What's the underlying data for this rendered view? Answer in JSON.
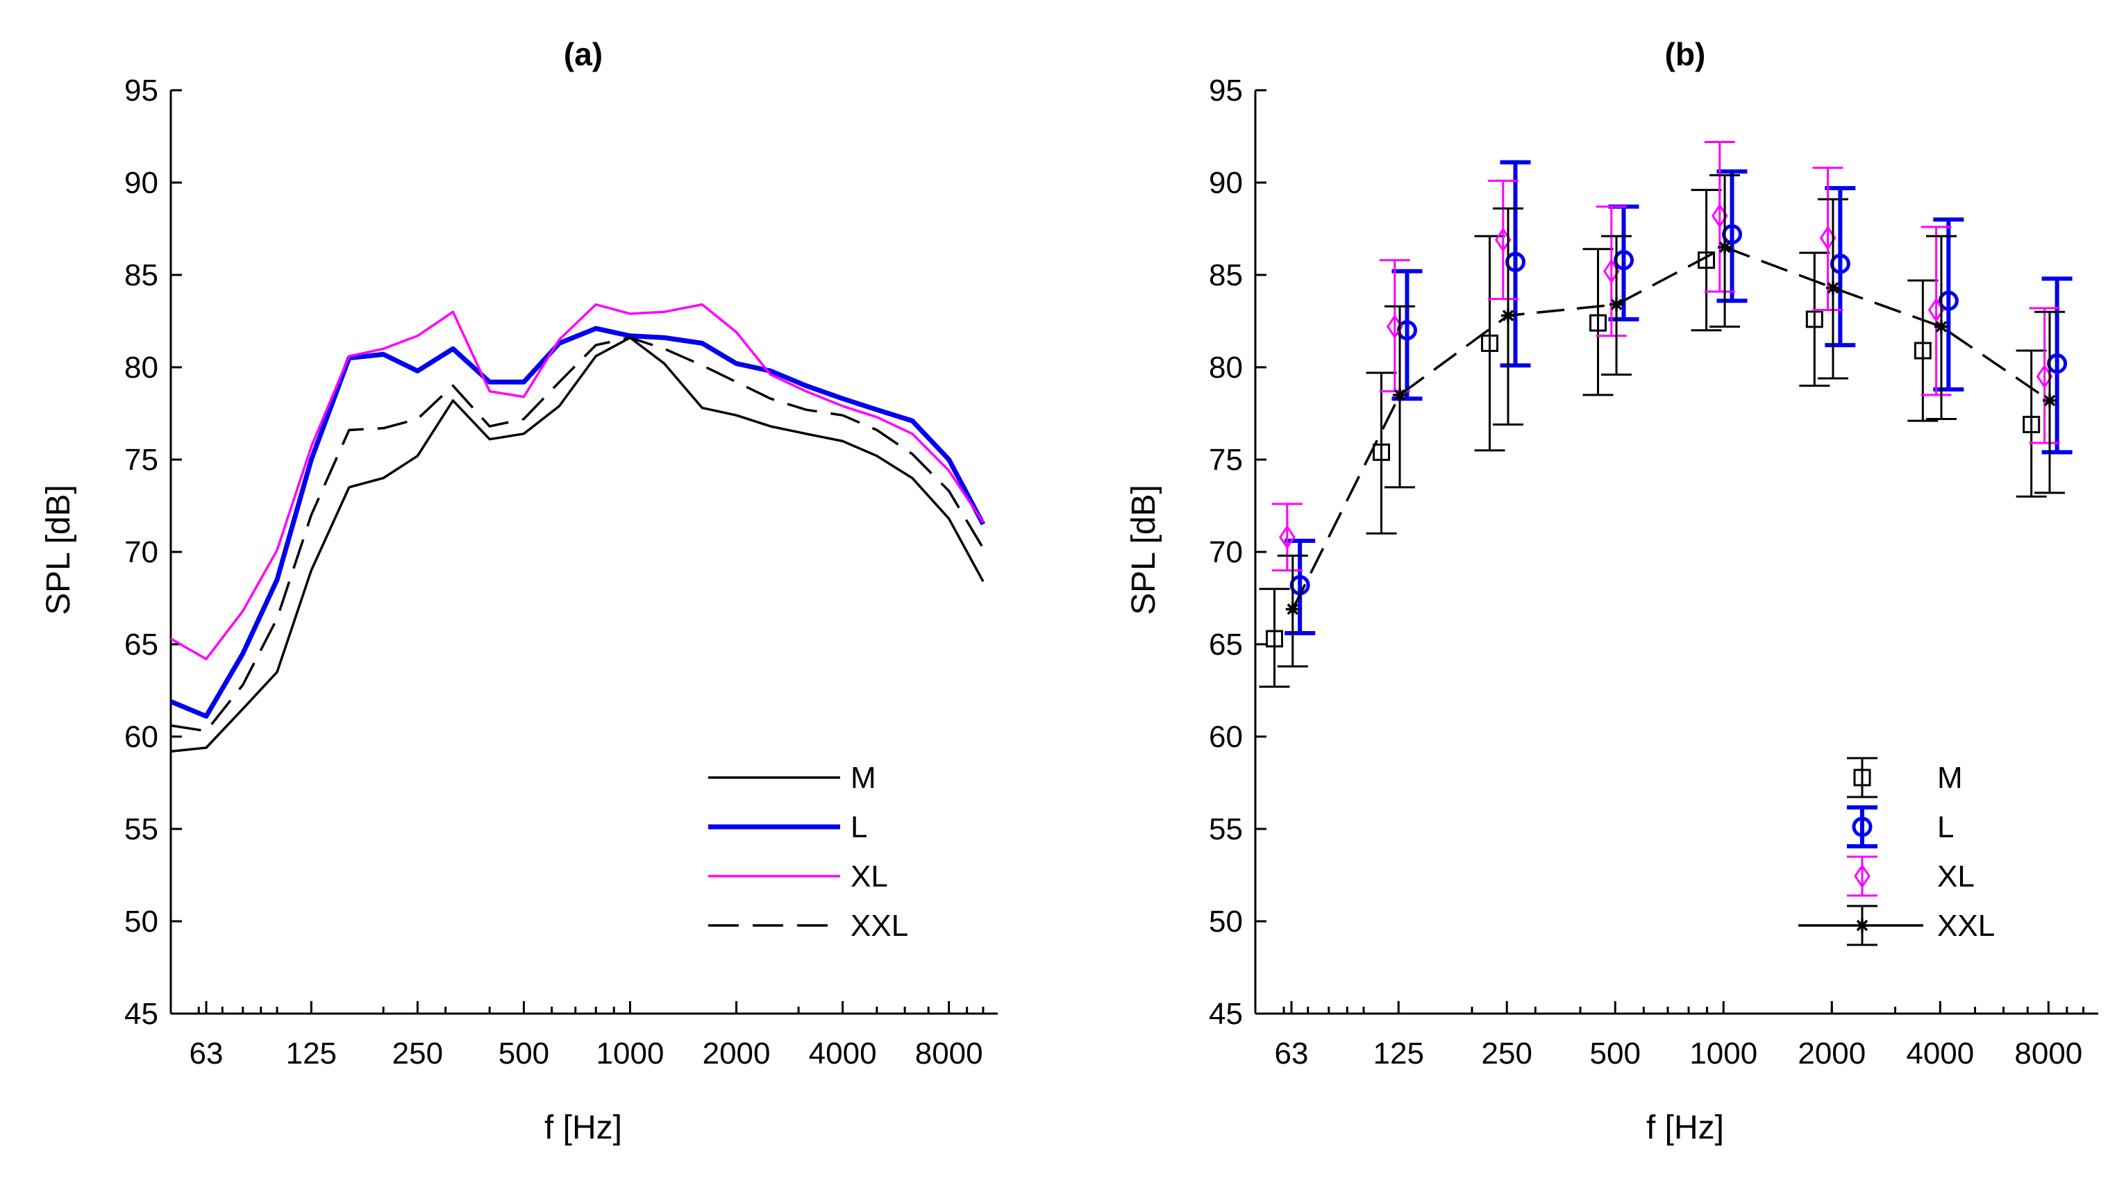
{
  "chart_data": [
    {
      "type": "line",
      "title": "(a)",
      "xlabel": "f [Hz]",
      "ylabel": "SPL [dB]",
      "xscale": "log",
      "xlim": [
        50,
        11000
      ],
      "ylim": [
        45,
        95
      ],
      "yticks": [
        45,
        50,
        55,
        60,
        65,
        70,
        75,
        80,
        85,
        90,
        95
      ],
      "xtick_values": [
        63,
        125,
        250,
        500,
        1000,
        2000,
        4000,
        8000
      ],
      "xtick_labels": [
        "63",
        "125",
        "250",
        "500",
        "1000",
        "2000",
        "4000",
        "8000"
      ],
      "legend_position": "bottom-right",
      "x": [
        50,
        63,
        80,
        100,
        125,
        160,
        200,
        250,
        315,
        400,
        500,
        630,
        800,
        1000,
        1250,
        1600,
        2000,
        2500,
        3150,
        4000,
        5000,
        6300,
        8000,
        10000
      ],
      "series": [
        {
          "name": "M",
          "color": "#000000",
          "style": "solid",
          "values": [
            59.2,
            59.4,
            61.5,
            63.5,
            69.0,
            73.5,
            74.0,
            75.2,
            78.2,
            76.1,
            76.4,
            77.9,
            80.6,
            81.6,
            80.2,
            77.8,
            77.4,
            76.8,
            76.4,
            76.0,
            75.2,
            74.0,
            71.8,
            68.4
          ]
        },
        {
          "name": "L",
          "color": "#0000ee",
          "style": "solid-thick",
          "values": [
            61.9,
            61.1,
            64.5,
            68.5,
            75.0,
            80.5,
            80.7,
            79.8,
            81.0,
            79.2,
            79.2,
            81.3,
            82.1,
            81.7,
            81.6,
            81.3,
            80.2,
            79.8,
            79.0,
            78.3,
            77.7,
            77.1,
            75.0,
            71.5
          ]
        },
        {
          "name": "XL",
          "color": "#ff00ff",
          "style": "solid",
          "values": [
            65.3,
            64.2,
            66.8,
            70.1,
            75.7,
            80.6,
            81.0,
            81.7,
            83.0,
            78.7,
            78.4,
            81.5,
            83.4,
            82.9,
            83.0,
            83.4,
            81.9,
            79.6,
            78.7,
            77.9,
            77.3,
            76.4,
            74.4,
            71.6
          ]
        },
        {
          "name": "XXL",
          "color": "#000000",
          "style": "dashed",
          "values": [
            60.6,
            60.3,
            62.8,
            66.4,
            72.0,
            76.6,
            76.7,
            77.2,
            79.0,
            76.8,
            77.2,
            79.2,
            81.2,
            81.6,
            81.0,
            80.1,
            79.2,
            78.3,
            77.7,
            77.4,
            76.6,
            75.3,
            73.3,
            70.2
          ]
        }
      ]
    },
    {
      "type": "scatter",
      "title": "(b)",
      "xlabel": "f [Hz]",
      "ylabel": "SPL [dB]",
      "xscale": "log",
      "xlim": [
        50,
        11000
      ],
      "ylim": [
        45,
        95
      ],
      "yticks": [
        45,
        50,
        55,
        60,
        65,
        70,
        75,
        80,
        85,
        90,
        95
      ],
      "xtick_values": [
        63,
        125,
        250,
        500,
        1000,
        2000,
        4000,
        8000
      ],
      "xtick_labels": [
        "63",
        "125",
        "250",
        "500",
        "1000",
        "2000",
        "4000",
        "8000"
      ],
      "legend_position": "bottom-right",
      "categories": [
        "63",
        "125",
        "250",
        "500",
        "1000",
        "2000",
        "4000",
        "8000"
      ],
      "series": [
        {
          "name": "M",
          "color": "#000000",
          "marker": "square",
          "errorbars": true,
          "line": false,
          "x": [
            56.5,
            112,
            224,
            448,
            896,
            1790,
            3580,
            7170
          ],
          "values": [
            65.3,
            75.4,
            81.3,
            82.4,
            85.8,
            82.6,
            80.9,
            76.9
          ],
          "lower": [
            62.7,
            71.0,
            75.5,
            78.5,
            82.0,
            79.0,
            77.1,
            73.0
          ],
          "upper": [
            68.0,
            79.7,
            87.1,
            86.4,
            89.6,
            86.2,
            84.7,
            80.9
          ]
        },
        {
          "name": "L",
          "color": "#0000ee",
          "marker": "circle",
          "errorbars": true,
          "line": false,
          "x": [
            66.5,
            132,
            264,
            528,
            1056,
            2110,
            4220,
            8450
          ],
          "values": [
            68.2,
            82.0,
            85.7,
            85.8,
            87.2,
            85.6,
            83.6,
            80.2
          ],
          "lower": [
            65.6,
            78.3,
            80.1,
            82.6,
            83.6,
            81.2,
            78.8,
            75.4
          ],
          "upper": [
            70.6,
            85.2,
            91.1,
            88.7,
            90.6,
            89.7,
            88.0,
            84.8
          ]
        },
        {
          "name": "XL",
          "color": "#ff00ff",
          "marker": "diamond",
          "errorbars": true,
          "line": false,
          "x": [
            61.3,
            122,
            244,
            488,
            976,
            1950,
            3900,
            7800
          ],
          "values": [
            70.8,
            82.2,
            86.9,
            85.2,
            88.2,
            87.0,
            83.1,
            79.5
          ],
          "lower": [
            69.0,
            78.7,
            83.7,
            81.7,
            84.1,
            83.1,
            78.5,
            75.9
          ],
          "upper": [
            72.6,
            85.8,
            90.1,
            88.7,
            92.2,
            90.8,
            87.6,
            83.2
          ]
        },
        {
          "name": "XXL",
          "color": "#000000",
          "marker": "star",
          "errorbars": true,
          "line": true,
          "line_style": "dashed",
          "x": [
            63.5,
            126,
            252,
            504,
            1008,
            2015,
            4030,
            8060
          ],
          "values": [
            66.9,
            78.5,
            82.8,
            83.4,
            86.5,
            84.3,
            82.2,
            78.2
          ],
          "lower": [
            63.8,
            73.5,
            76.9,
            79.6,
            82.2,
            79.4,
            77.2,
            73.2
          ],
          "upper": [
            69.8,
            83.3,
            88.6,
            87.1,
            90.4,
            89.1,
            87.1,
            83.0
          ]
        }
      ]
    }
  ]
}
